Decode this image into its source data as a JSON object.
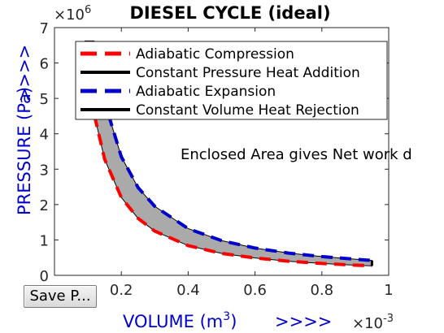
{
  "chart_data": {
    "type": "line",
    "title": "DIESEL CYCLE (ideal)",
    "xlabel": "VOLUME (m",
    "xlabel_superscript": "3",
    "xlabel_suffix": ")",
    "xlabel_arrows": ">>>>",
    "ylabel": "PRESSURE (Pa)",
    "ylabel_arrows": ">>>>",
    "x_exponent_base": "×10",
    "x_exponent_power": "-3",
    "y_exponent_base": "×10",
    "y_exponent_power": "6",
    "xlim": [
      0,
      0.001
    ],
    "ylim": [
      0,
      7000000
    ],
    "x_tick_scale": 0.001,
    "y_tick_scale": 1000000,
    "x_ticks": [
      0.0002,
      0.0004,
      0.0006,
      0.0008,
      0.001
    ],
    "x_tick_labels": [
      "0.2",
      "0.4",
      "0.6",
      "0.8",
      "1"
    ],
    "y_ticks": [
      0,
      1000000,
      2000000,
      3000000,
      4000000,
      5000000,
      6000000,
      7000000
    ],
    "y_tick_labels": [
      "0",
      "1",
      "2",
      "3",
      "4",
      "5",
      "6",
      "7"
    ],
    "grid": false,
    "legend_position": "top-right",
    "annotation": "Enclosed Area gives Net work d",
    "fill_color": "#aaaaaa",
    "series": [
      {
        "name": "Adiabatic Compression",
        "color": "#ff0000",
        "dash": "dashed",
        "x": [
          9e-05,
          0.0001,
          0.00012,
          0.00015,
          0.0002,
          0.00025,
          0.0003,
          0.0004,
          0.0005,
          0.0006,
          0.0007,
          0.0008,
          0.0009,
          0.00095
        ],
        "y": [
          6600000,
          5800000,
          4500000,
          3280000,
          2200000,
          1610000,
          1250000,
          840000,
          620000,
          490000,
          400000,
          335000,
          288000,
          268000
        ]
      },
      {
        "name": "Constant Pressure Heat Addition",
        "color": "#000000",
        "dash": "solid",
        "x": [
          9e-05,
          0.00012
        ],
        "y": [
          6600000,
          6600000
        ]
      },
      {
        "name": "Adiabatic Expansion",
        "color": "#0000cc",
        "dash": "dashed",
        "x": [
          0.00012,
          0.00015,
          0.0002,
          0.00025,
          0.0003,
          0.0004,
          0.0005,
          0.0006,
          0.0007,
          0.0008,
          0.0009,
          0.00095
        ],
        "y": [
          6600000,
          4900000,
          3350000,
          2480000,
          1950000,
          1320000,
          980000,
          770000,
          630000,
          530000,
          455000,
          420000
        ]
      },
      {
        "name": "Constant Volume Heat Rejection",
        "color": "#000000",
        "dash": "solid",
        "x": [
          0.00095,
          0.00095
        ],
        "y": [
          420000,
          268000
        ]
      }
    ]
  },
  "controls": {
    "save_button_label": "Save P..."
  }
}
